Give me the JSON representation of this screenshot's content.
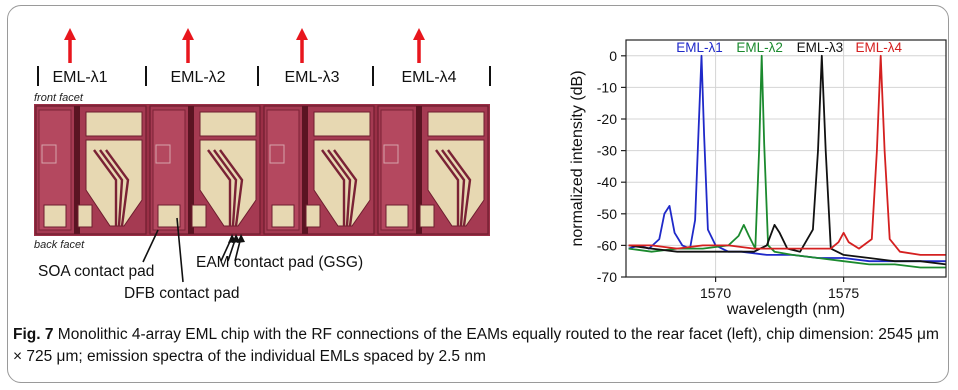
{
  "chip": {
    "top_labels": [
      "EML-λ1",
      "EML-λ2",
      "EML-λ3",
      "EML-λ4"
    ],
    "front_facet": "front facet",
    "back_facet": "back facet",
    "annotations": {
      "soa": "SOA contact pad",
      "dfb": "DFB contact pad",
      "eam": "EAM contact pad (GSG)"
    },
    "colors": {
      "arrow": "#e8161d",
      "substrate": "#9a2f46",
      "pad": "#e7d8b2"
    }
  },
  "chart_data": {
    "type": "line",
    "xlabel": "wavelength (nm)",
    "ylabel": "normalized intensity (dB)",
    "xlim": [
      1566.5,
      1579
    ],
    "ylim": [
      -70,
      5
    ],
    "xticks": [
      1570,
      1575
    ],
    "yticks": [
      0,
      -10,
      -20,
      -30,
      -40,
      -50,
      -60,
      -70
    ],
    "grid": true,
    "series": [
      {
        "name": "EML-λ1",
        "color": "#1f29c9",
        "x": [
          1566.6,
          1567.0,
          1567.4,
          1567.8,
          1568.0,
          1568.2,
          1568.4,
          1568.7,
          1569.0,
          1569.2,
          1569.35,
          1569.45,
          1569.55,
          1569.7,
          1570.0,
          1570.5,
          1571,
          1572,
          1573,
          1574,
          1575,
          1576,
          1577,
          1578,
          1579
        ],
        "y": [
          -61,
          -60,
          -61,
          -58,
          -50,
          -47.5,
          -56,
          -60,
          -61,
          -52,
          -20,
          0,
          -25,
          -55,
          -60,
          -62,
          -62,
          -63,
          -63,
          -64,
          -64,
          -65,
          -65,
          -65,
          -65
        ]
      },
      {
        "name": "EML-λ2",
        "color": "#1b8a2e",
        "x": [
          1566.6,
          1567.5,
          1568.5,
          1569.5,
          1570.5,
          1570.9,
          1571.1,
          1571.3,
          1571.55,
          1571.7,
          1571.8,
          1571.9,
          1572.05,
          1572.3,
          1573,
          1574,
          1575,
          1576,
          1577,
          1578,
          1579
        ],
        "y": [
          -61,
          -62,
          -61,
          -61,
          -60,
          -57,
          -53.5,
          -57,
          -61,
          -30,
          0,
          -28,
          -60,
          -62,
          -63,
          -64,
          -65,
          -66,
          -66,
          -67,
          -67
        ]
      },
      {
        "name": "EML-λ3",
        "color": "#111111",
        "x": [
          1566.6,
          1567.5,
          1568.5,
          1569.5,
          1570.5,
          1571.5,
          1572.0,
          1572.3,
          1572.5,
          1572.8,
          1573.3,
          1573.8,
          1574.0,
          1574.15,
          1574.3,
          1574.5,
          1575,
          1576,
          1577,
          1578,
          1579
        ],
        "y": [
          -60,
          -61,
          -62,
          -62,
          -62,
          -62,
          -60,
          -53.5,
          -56,
          -61,
          -62,
          -55,
          -30,
          0,
          -30,
          -61,
          -63,
          -64,
          -65,
          -65,
          -66
        ]
      },
      {
        "name": "EML-λ4",
        "color": "#d42020",
        "x": [
          1566.6,
          1567.5,
          1568.5,
          1569.5,
          1570.5,
          1571.5,
          1572.5,
          1573.5,
          1574.5,
          1574.8,
          1575.0,
          1575.2,
          1575.6,
          1576.1,
          1576.3,
          1576.45,
          1576.6,
          1576.8,
          1577.2,
          1578,
          1579
        ],
        "y": [
          -60,
          -60,
          -61,
          -60,
          -60,
          -61,
          -61,
          -61,
          -61,
          -59,
          -56,
          -59,
          -61,
          -58,
          -30,
          0,
          -30,
          -58,
          -62,
          -63,
          -63
        ]
      }
    ]
  },
  "caption": {
    "label": "Fig. 7",
    "text": "Monolithic 4-array EML chip with the RF connections of the EAMs equally routed to the rear facet (left), chip dimension: 2545 μm × 725 μm; emission spectra of the individual EMLs spaced by 2.5 nm"
  }
}
